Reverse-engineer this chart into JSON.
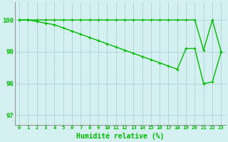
{
  "xlabel": "Humidité relative (%)",
  "bg_color": "#d5f0f0",
  "grid_color": "#b0d8d8",
  "line_color": "#00bb00",
  "xlim": [
    -0.5,
    23.5
  ],
  "ylim": [
    96.7,
    100.55
  ],
  "yticks": [
    97,
    98,
    99,
    100
  ],
  "xticks": [
    0,
    1,
    2,
    3,
    4,
    5,
    6,
    7,
    8,
    9,
    10,
    11,
    12,
    13,
    14,
    15,
    16,
    17,
    18,
    19,
    20,
    21,
    22,
    23
  ],
  "series1": [
    100,
    100,
    100,
    100,
    100,
    100,
    100,
    100,
    100,
    100,
    100,
    100,
    100,
    100,
    100,
    100,
    100,
    100,
    100,
    100,
    100,
    99.05,
    100,
    99.0
  ],
  "series2": [
    100,
    100,
    99.95,
    99.9,
    99.85,
    99.75,
    99.65,
    99.55,
    99.45,
    99.35,
    99.25,
    99.15,
    99.05,
    98.95,
    98.85,
    98.75,
    98.65,
    98.55,
    98.45,
    99.1,
    99.1,
    98.0,
    98.05,
    99.0
  ],
  "marker": "+",
  "markersize": 3.5,
  "linewidth": 1.0
}
